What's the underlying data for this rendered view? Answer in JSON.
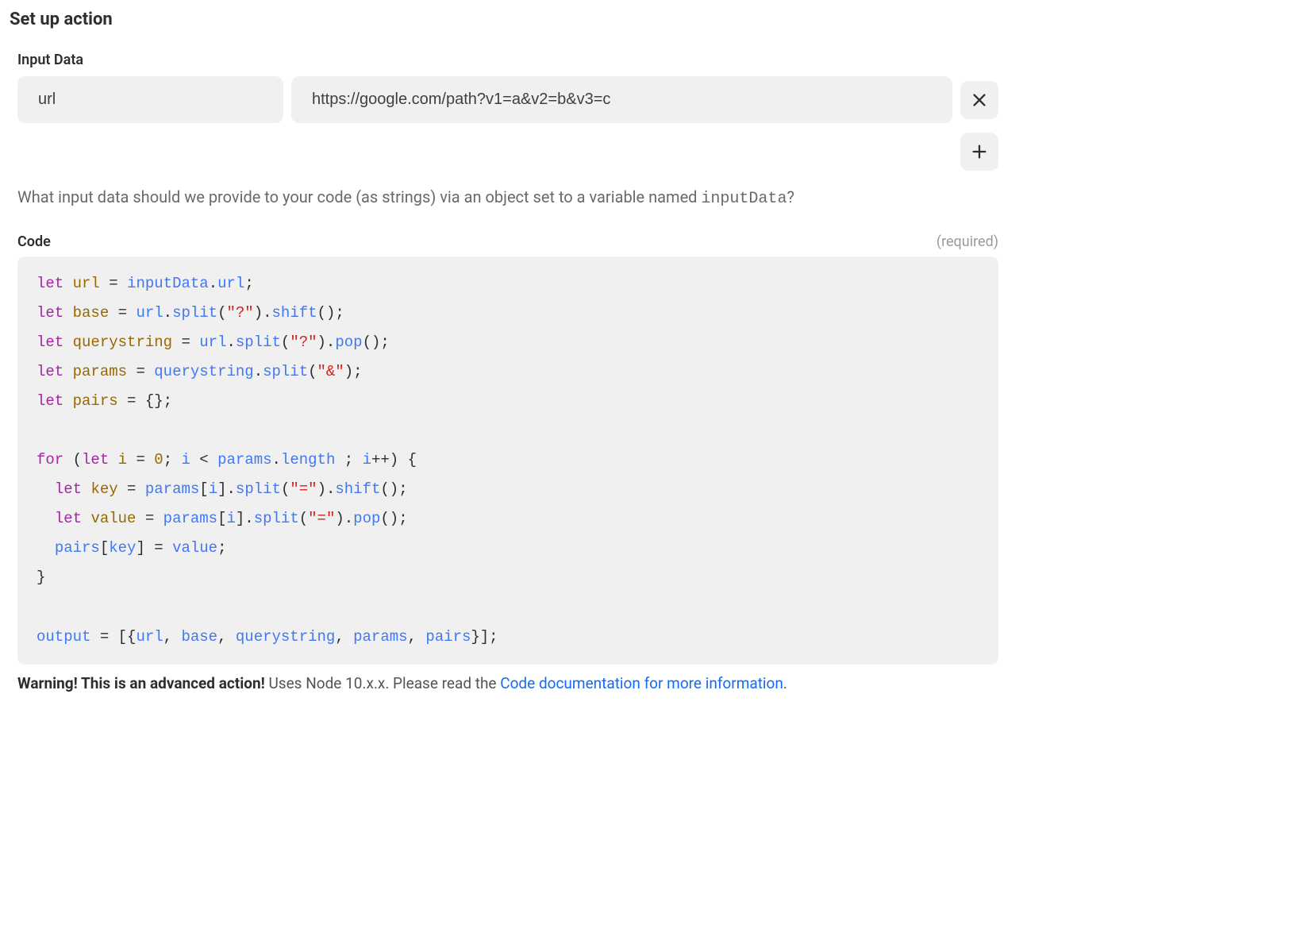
{
  "title": "Set up action",
  "inputData": {
    "label": "Input Data",
    "rows": [
      {
        "key": "url",
        "value": "https://google.com/path?v1=a&v2=b&v3=c"
      }
    ]
  },
  "helpText": {
    "before": "What input data should we provide to your code (as strings) via an object set to a variable named ",
    "code": "inputData",
    "after": "?"
  },
  "code": {
    "label": "Code",
    "requiredLabel": "(required)",
    "tokens": [
      [
        [
          "kw",
          "let"
        ],
        [
          "txt",
          " "
        ],
        [
          "var",
          "url"
        ],
        [
          "txt",
          " = "
        ],
        [
          "prop",
          "inputData"
        ],
        [
          "txt",
          "."
        ],
        [
          "prop",
          "url"
        ],
        [
          "txt",
          ";"
        ]
      ],
      [
        [
          "kw",
          "let"
        ],
        [
          "txt",
          " "
        ],
        [
          "var",
          "base"
        ],
        [
          "txt",
          " = "
        ],
        [
          "prop",
          "url"
        ],
        [
          "txt",
          "."
        ],
        [
          "prop",
          "split"
        ],
        [
          "txt",
          "("
        ],
        [
          "str",
          "\"?\""
        ],
        [
          "txt",
          ")."
        ],
        [
          "prop",
          "shift"
        ],
        [
          "txt",
          "();"
        ]
      ],
      [
        [
          "kw",
          "let"
        ],
        [
          "txt",
          " "
        ],
        [
          "var",
          "querystring"
        ],
        [
          "txt",
          " = "
        ],
        [
          "prop",
          "url"
        ],
        [
          "txt",
          "."
        ],
        [
          "prop",
          "split"
        ],
        [
          "txt",
          "("
        ],
        [
          "str",
          "\"?\""
        ],
        [
          "txt",
          ")."
        ],
        [
          "prop",
          "pop"
        ],
        [
          "txt",
          "();"
        ]
      ],
      [
        [
          "kw",
          "let"
        ],
        [
          "txt",
          " "
        ],
        [
          "var",
          "params"
        ],
        [
          "txt",
          " = "
        ],
        [
          "prop",
          "querystring"
        ],
        [
          "txt",
          "."
        ],
        [
          "prop",
          "split"
        ],
        [
          "txt",
          "("
        ],
        [
          "str",
          "\"&\""
        ],
        [
          "txt",
          ");"
        ]
      ],
      [
        [
          "kw",
          "let"
        ],
        [
          "txt",
          " "
        ],
        [
          "var",
          "pairs"
        ],
        [
          "txt",
          " = {};"
        ]
      ],
      [],
      [
        [
          "kw",
          "for"
        ],
        [
          "txt",
          " ("
        ],
        [
          "kw",
          "let"
        ],
        [
          "txt",
          " "
        ],
        [
          "var",
          "i"
        ],
        [
          "txt",
          " = "
        ],
        [
          "num",
          "0"
        ],
        [
          "txt",
          "; "
        ],
        [
          "prop",
          "i"
        ],
        [
          "txt",
          " < "
        ],
        [
          "prop",
          "params"
        ],
        [
          "txt",
          "."
        ],
        [
          "prop",
          "length"
        ],
        [
          "txt",
          " ; "
        ],
        [
          "prop",
          "i"
        ],
        [
          "txt",
          "++) {"
        ]
      ],
      [
        [
          "txt",
          "  "
        ],
        [
          "kw",
          "let"
        ],
        [
          "txt",
          " "
        ],
        [
          "var",
          "key"
        ],
        [
          "txt",
          " = "
        ],
        [
          "prop",
          "params"
        ],
        [
          "txt",
          "["
        ],
        [
          "prop",
          "i"
        ],
        [
          "txt",
          "]."
        ],
        [
          "prop",
          "split"
        ],
        [
          "txt",
          "("
        ],
        [
          "str",
          "\"=\""
        ],
        [
          "txt",
          ")."
        ],
        [
          "prop",
          "shift"
        ],
        [
          "txt",
          "();"
        ]
      ],
      [
        [
          "txt",
          "  "
        ],
        [
          "kw",
          "let"
        ],
        [
          "txt",
          " "
        ],
        [
          "var",
          "value"
        ],
        [
          "txt",
          " = "
        ],
        [
          "prop",
          "params"
        ],
        [
          "txt",
          "["
        ],
        [
          "prop",
          "i"
        ],
        [
          "txt",
          "]."
        ],
        [
          "prop",
          "split"
        ],
        [
          "txt",
          "("
        ],
        [
          "str",
          "\"=\""
        ],
        [
          "txt",
          ")."
        ],
        [
          "prop",
          "pop"
        ],
        [
          "txt",
          "();"
        ]
      ],
      [
        [
          "txt",
          "  "
        ],
        [
          "prop",
          "pairs"
        ],
        [
          "txt",
          "["
        ],
        [
          "prop",
          "key"
        ],
        [
          "txt",
          "] = "
        ],
        [
          "prop",
          "value"
        ],
        [
          "txt",
          ";"
        ]
      ],
      [
        [
          "txt",
          "}"
        ]
      ],
      [],
      [
        [
          "prop",
          "output"
        ],
        [
          "txt",
          " = [{"
        ],
        [
          "prop",
          "url"
        ],
        [
          "txt",
          ", "
        ],
        [
          "prop",
          "base"
        ],
        [
          "txt",
          ", "
        ],
        [
          "prop",
          "querystring"
        ],
        [
          "txt",
          ", "
        ],
        [
          "prop",
          "params"
        ],
        [
          "txt",
          ", "
        ],
        [
          "prop",
          "pairs"
        ],
        [
          "txt",
          "}];"
        ]
      ]
    ]
  },
  "warning": {
    "bold": "Warning! This is an advanced action!",
    "middle": " Uses Node 10.x.x. Please read the ",
    "linkText": "Code documentation for more information",
    "after": "."
  },
  "colors": {
    "fieldBg": "#f0f0f0",
    "link": "#136bf5",
    "kw": "#a626a4",
    "var": "#986801",
    "prop": "#4078f2",
    "str": "#d91e18"
  }
}
